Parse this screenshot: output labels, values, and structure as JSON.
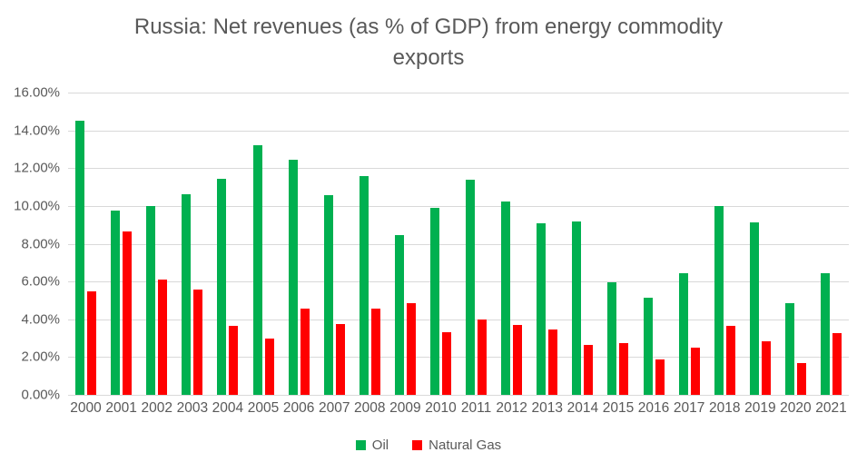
{
  "page": {
    "background": "#FFFFFF",
    "text_color": "#595959",
    "gridline_color": "#D9D9D9"
  },
  "chart_data": {
    "type": "bar",
    "title": "Russia: Net revenues (as % of GDP) from energy commodity exports",
    "categories": [
      "2000",
      "2001",
      "2002",
      "2003",
      "2004",
      "2005",
      "2006",
      "2007",
      "2008",
      "2009",
      "2010",
      "2011",
      "2012",
      "2013",
      "2014",
      "2015",
      "2016",
      "2017",
      "2018",
      "2019",
      "2020",
      "2021"
    ],
    "series": [
      {
        "name": "Oil",
        "color": "#00B050",
        "values": [
          14.5,
          9.75,
          10.0,
          10.6,
          11.45,
          13.2,
          12.45,
          10.55,
          11.6,
          8.45,
          9.9,
          11.4,
          10.25,
          9.1,
          9.2,
          5.95,
          5.15,
          6.45,
          10.0,
          9.15,
          4.85,
          6.45
        ]
      },
      {
        "name": "Natural Gas",
        "color": "#FF0000",
        "values": [
          5.5,
          8.65,
          6.1,
          5.6,
          3.65,
          3.0,
          4.55,
          3.75,
          4.55,
          4.85,
          3.3,
          4.0,
          3.7,
          3.45,
          2.65,
          2.75,
          1.9,
          2.5,
          3.65,
          2.85,
          1.7,
          3.25
        ]
      }
    ],
    "unit": "%",
    "ylim": [
      0,
      16
    ],
    "yticks": [
      "0.00%",
      "2.00%",
      "4.00%",
      "6.00%",
      "8.00%",
      "10.00%",
      "12.00%",
      "14.00%",
      "16.00%"
    ],
    "xlabel": "",
    "ylabel": "",
    "grid": true,
    "legend_position": "bottom"
  }
}
